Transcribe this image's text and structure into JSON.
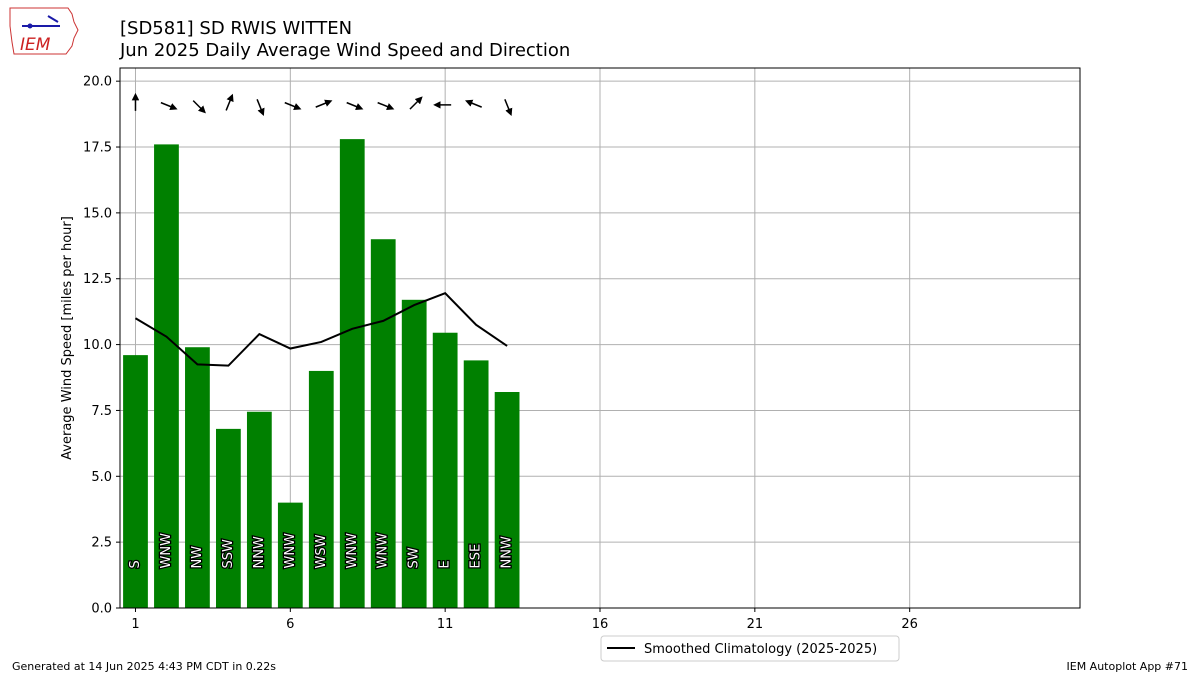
{
  "logo": {
    "text": "IEM"
  },
  "header": {
    "title": "[SD581] SD RWIS WITTEN",
    "subtitle": "Jun 2025 Daily Average Wind Speed and Direction"
  },
  "footer": {
    "generated": "Generated at 14 Jun 2025 4:43 PM CDT in 0.22s",
    "app": "IEM Autoplot App #71"
  },
  "colors": {
    "bar": "#008000",
    "line": "#000000",
    "grid": "#b0b0b0"
  },
  "chart_data": {
    "type": "bar",
    "ylabel": "Average Wind Speed [miles per hour]",
    "xlabel": "",
    "xlim": [
      0.5,
      31.5
    ],
    "ylim": [
      0,
      20.5
    ],
    "xticks": [
      1,
      6,
      11,
      16,
      21,
      26
    ],
    "yticks": [
      0.0,
      2.5,
      5.0,
      7.5,
      10.0,
      12.5,
      15.0,
      17.5,
      20.0
    ],
    "ytick_labels": [
      "0.0",
      "2.5",
      "5.0",
      "7.5",
      "10.0",
      "12.5",
      "15.0",
      "17.5",
      "20.0"
    ],
    "grid": true,
    "days": [
      1,
      2,
      3,
      4,
      5,
      6,
      7,
      8,
      9,
      10,
      11,
      12,
      13
    ],
    "speed": [
      9.6,
      17.6,
      9.9,
      6.8,
      7.45,
      4.0,
      9.0,
      17.8,
      14.0,
      11.7,
      10.45,
      9.4,
      8.2
    ],
    "direction_labels": [
      "S",
      "WNW",
      "NW",
      "SSW",
      "NNW",
      "WNW",
      "WSW",
      "WNW",
      "WNW",
      "SW",
      "E",
      "ESE",
      "NNW"
    ],
    "direction_deg": [
      180,
      292,
      315,
      202,
      338,
      292,
      248,
      292,
      292,
      225,
      90,
      112,
      338
    ],
    "climatology": {
      "name": "Smoothed Climatology (2025-2025)",
      "days": [
        1,
        2,
        3,
        4,
        5,
        6,
        7,
        8,
        9,
        10,
        11,
        12,
        13
      ],
      "values": [
        11.0,
        10.3,
        9.25,
        9.2,
        10.4,
        9.85,
        10.1,
        10.6,
        10.9,
        11.5,
        11.95,
        10.75,
        9.95
      ]
    },
    "legend_position": "below-center"
  }
}
